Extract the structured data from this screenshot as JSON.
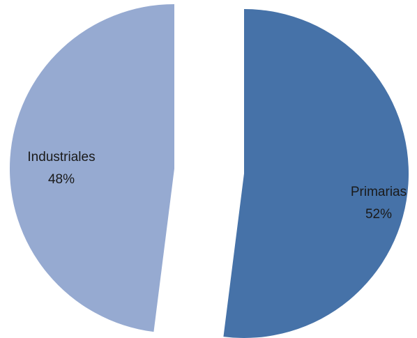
{
  "chart_data": {
    "type": "pie",
    "title": "",
    "categories": [
      "Primarias",
      "Industriales"
    ],
    "values": [
      52,
      48
    ],
    "value_labels": [
      "52%",
      "48%"
    ],
    "exploded": true,
    "start_angle_degrees": 0,
    "direction": "clockwise",
    "legend": "none",
    "colors": [
      "#4672A8",
      "#96AAD1"
    ]
  }
}
